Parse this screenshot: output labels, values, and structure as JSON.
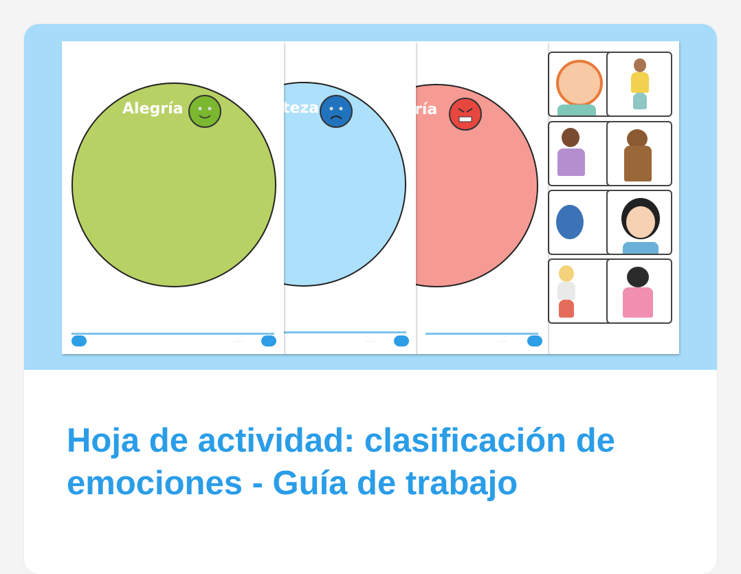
{
  "resource": {
    "title": "Hoja de actividad: clasificación de emociones - Guía de trabajo",
    "preview_pages": [
      {
        "label": "Alegría",
        "circle_color": "#b8d165",
        "face_color": "#7cb82f",
        "face": "happy-face-icon"
      },
      {
        "label": "teza",
        "circle_color": "#ade0fb",
        "face_color": "#2273bd",
        "face": "sad-face-icon"
      },
      {
        "label": "ría",
        "circle_color": "#f59b94",
        "face_color": "#e8473f",
        "face": "angry-face-icon"
      }
    ],
    "colors": {
      "accent": "#2a9de8",
      "hero_bg": "#a6dbfa"
    }
  }
}
